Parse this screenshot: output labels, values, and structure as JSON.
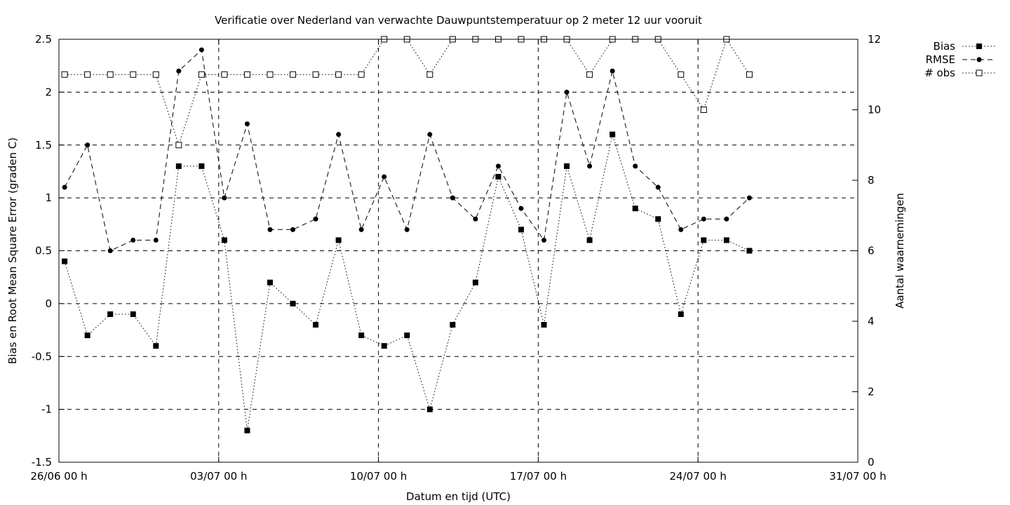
{
  "chart_data": {
    "type": "line",
    "title": "Verificatie over Nederland van verwachte Dauwpuntstemperatuur op 2 meter 12 uur vooruit",
    "xlabel": "Datum en tijd (UTC)",
    "ylabel": "Bias en Root Mean Square Error (graden C)",
    "y2label": "Aantal waarnemingen",
    "x_range_days": [
      0,
      35
    ],
    "ylim": [
      -1.5,
      2.5
    ],
    "y2lim": [
      0,
      12
    ],
    "x_ticks": [
      {
        "day": 0,
        "label": "26/06 00 h"
      },
      {
        "day": 7,
        "label": "03/07 00 h"
      },
      {
        "day": 14,
        "label": "10/07 00 h"
      },
      {
        "day": 21,
        "label": "17/07 00 h"
      },
      {
        "day": 28,
        "label": "24/07 00 h"
      },
      {
        "day": 35,
        "label": "31/07 00 h"
      }
    ],
    "y_ticks": [
      {
        "value": -1.5,
        "label": "-1.5"
      },
      {
        "value": -1,
        "label": "-1"
      },
      {
        "value": -0.5,
        "label": "-0.5"
      },
      {
        "value": 0,
        "label": "0"
      },
      {
        "value": 0.5,
        "label": "0.5"
      },
      {
        "value": 1,
        "label": "1"
      },
      {
        "value": 1.5,
        "label": "1.5"
      },
      {
        "value": 2,
        "label": "2"
      },
      {
        "value": 2.5,
        "label": "2.5"
      }
    ],
    "y2_ticks": [
      {
        "value": 0,
        "label": "0"
      },
      {
        "value": 2,
        "label": "2"
      },
      {
        "value": 4,
        "label": "4"
      },
      {
        "value": 6,
        "label": "6"
      },
      {
        "value": 8,
        "label": "8"
      },
      {
        "value": 10,
        "label": "10"
      },
      {
        "value": 12,
        "label": "12"
      }
    ],
    "grid": "dashed lines at every tick",
    "legend_position": "outside-top-right",
    "x": [
      0.25,
      1.25,
      2.25,
      3.25,
      4.25,
      5.25,
      6.25,
      7.25,
      8.25,
      9.25,
      10.25,
      11.25,
      12.25,
      13.25,
      14.25,
      15.25,
      16.25,
      17.25,
      18.25,
      19.25,
      20.25,
      21.25,
      22.25,
      23.25,
      24.25,
      25.25,
      26.25,
      27.25,
      28.25,
      29.25,
      30.25
    ],
    "series": [
      {
        "name": "Bias",
        "axis": "left",
        "line": "dotted",
        "marker": "filled-square",
        "values": [
          0.4,
          -0.3,
          -0.1,
          -0.1,
          -0.4,
          1.3,
          1.3,
          0.6,
          -1.2,
          0.2,
          0.0,
          -0.2,
          0.6,
          -0.3,
          -0.4,
          -0.3,
          -1.0,
          -0.2,
          0.2,
          1.2,
          0.7,
          -0.2,
          1.3,
          0.6,
          1.6,
          0.9,
          0.8,
          -0.1,
          0.6,
          0.6,
          0.5
        ]
      },
      {
        "name": "RMSE",
        "axis": "left",
        "line": "dashed",
        "marker": "filled-circle",
        "values": [
          1.1,
          1.5,
          0.5,
          0.6,
          0.6,
          2.2,
          2.4,
          1.0,
          1.7,
          0.7,
          0.7,
          0.8,
          1.6,
          0.7,
          1.2,
          0.7,
          1.6,
          1.0,
          0.8,
          1.3,
          0.9,
          0.6,
          2.0,
          1.3,
          2.2,
          1.3,
          1.1,
          0.7,
          0.8,
          0.8,
          1.0
        ]
      },
      {
        "name": "# obs",
        "axis": "right",
        "line": "dotted",
        "marker": "open-square",
        "values": [
          11,
          11,
          11,
          11,
          11,
          9,
          11,
          11,
          11,
          11,
          11,
          11,
          11,
          11,
          12,
          12,
          11,
          12,
          12,
          12,
          12,
          12,
          12,
          11,
          12,
          12,
          12,
          11,
          10,
          12,
          11
        ]
      }
    ]
  }
}
